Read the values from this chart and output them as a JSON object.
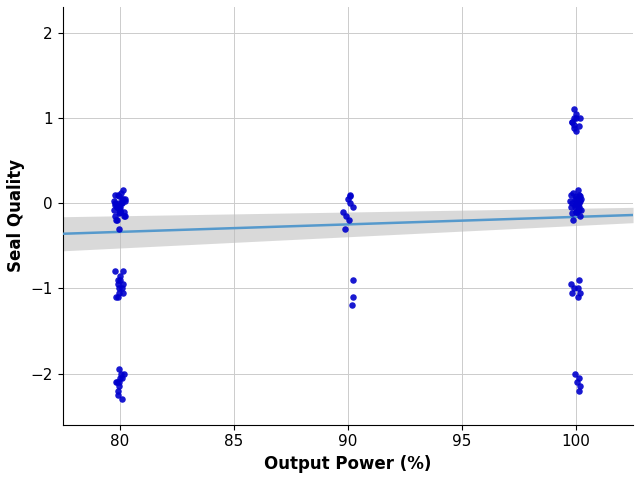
{
  "title": "",
  "xlabel": "Output Power (%)",
  "ylabel": "Seal Quality",
  "xlim": [
    77.5,
    102.5
  ],
  "ylim": [
    -2.6,
    2.3
  ],
  "xticks": [
    80,
    85,
    90,
    95,
    100
  ],
  "yticks": [
    -2,
    -1,
    0,
    1,
    2
  ],
  "dot_color": "#0000CC",
  "dot_size": 22,
  "dot_alpha": 0.9,
  "line_color": "#5599CC",
  "line_width": 1.8,
  "ci_color": "#BBBBBB",
  "ci_alpha": 0.55,
  "regression_x0": 77.5,
  "regression_x1": 102.5,
  "regression_y0": -0.36,
  "regression_y1": -0.14,
  "ci_upper_y0": -0.16,
  "ci_upper_y1": -0.05,
  "ci_lower_y0": -0.56,
  "ci_lower_y1": -0.23,
  "points_x80": [
    80,
    80,
    80,
    80,
    80,
    80,
    80,
    80,
    80,
    80,
    80,
    80,
    80,
    80,
    80,
    80,
    80,
    80,
    80,
    80,
    80,
    80,
    80,
    80,
    80,
    80,
    80,
    80,
    80,
    80,
    80,
    80,
    80,
    80,
    80,
    80,
    80,
    80,
    80,
    80,
    80,
    80,
    80,
    80,
    80,
    80,
    80,
    80,
    80,
    80,
    80,
    80,
    80,
    80,
    80,
    80,
    80
  ],
  "points_y80": [
    0.1,
    0.05,
    0.0,
    0.0,
    0.02,
    -0.05,
    -0.1,
    -0.15,
    -0.2,
    -0.1,
    0.05,
    0.15,
    0.1,
    0.0,
    -0.05,
    -0.1,
    -0.2,
    -0.3,
    -0.15,
    -0.08,
    0.0,
    0.05,
    -0.05,
    -0.1,
    -0.15,
    -0.8,
    -0.9,
    -0.95,
    -1.0,
    -1.05,
    -1.1,
    -0.85,
    -0.95,
    -1.0,
    -0.9,
    -0.8,
    -1.05,
    -1.1,
    -2.05,
    -2.1,
    -2.15,
    -2.2,
    -2.0,
    -2.25,
    -2.1,
    -2.05,
    -1.95,
    -2.0,
    -2.1,
    -2.3,
    -0.05,
    0.08,
    0.12,
    -0.08,
    -0.12,
    0.03,
    -0.02
  ],
  "points_x90": [
    90,
    90,
    90,
    90,
    90,
    90,
    90,
    90,
    90,
    90,
    90,
    90
  ],
  "points_y90": [
    0.1,
    0.05,
    0.0,
    -0.05,
    0.08,
    -0.1,
    -0.15,
    -0.2,
    -0.3,
    -0.9,
    -1.1,
    -1.2
  ],
  "points_x100": [
    100,
    100,
    100,
    100,
    100,
    100,
    100,
    100,
    100,
    100,
    100,
    100,
    100,
    100,
    100,
    100,
    100,
    100,
    100,
    100,
    100,
    100,
    100,
    100,
    100,
    100,
    100,
    100,
    100,
    100,
    100,
    100,
    100,
    100,
    100,
    100,
    100,
    100,
    100,
    100,
    100,
    100,
    100,
    100,
    100,
    100,
    100,
    100,
    100,
    100
  ],
  "points_y100": [
    1.05,
    1.0,
    0.95,
    1.1,
    1.0,
    0.9,
    0.85,
    0.95,
    1.0,
    0.88,
    0.92,
    0.0,
    0.05,
    -0.05,
    0.1,
    0.0,
    -0.1,
    0.08,
    -0.08,
    0.03,
    -0.03,
    -0.05,
    0.05,
    0.1,
    -0.15,
    -0.2,
    -0.1,
    -0.9,
    -1.0,
    -1.05,
    -1.1,
    -0.95,
    -1.0,
    -1.05,
    -2.0,
    -2.1,
    -2.05,
    -2.15,
    -2.2,
    0.02,
    -0.02,
    0.0,
    -0.05,
    0.05,
    -0.1,
    0.08,
    -0.08,
    -0.12,
    0.12,
    0.15
  ],
  "figsize": [
    6.4,
    4.8
  ],
  "dpi": 100
}
